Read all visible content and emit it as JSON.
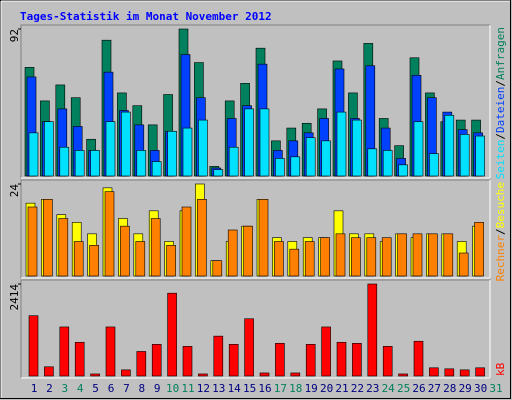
{
  "chart_data": [
    {
      "type": "bar",
      "title": "Tages-Statistik im Monat November 2012",
      "ylim": [
        0,
        92
      ],
      "yticks": [
        92
      ],
      "legend_separator": "/",
      "series": [
        {
          "name": "Anfragen",
          "color": "#00805c",
          "values": [
            68,
            47,
            57,
            49,
            23,
            85,
            52,
            44,
            32,
            51,
            92,
            71,
            6,
            47,
            58,
            80,
            22,
            30,
            33,
            42,
            72,
            52,
            83,
            36,
            19,
            74,
            52,
            34,
            35,
            35,
            null
          ]
        },
        {
          "name": "Dateien",
          "color": "#0040ff",
          "values": [
            62,
            34,
            42,
            31,
            16,
            65,
            41,
            32,
            16,
            28,
            76,
            49,
            5,
            36,
            44,
            70,
            16,
            22,
            27,
            36,
            67,
            36,
            69,
            30,
            11,
            63,
            49,
            40,
            29,
            27,
            null
          ]
        },
        {
          "name": "Seiten",
          "color": "#00e0ff",
          "values": [
            27,
            34,
            18,
            16,
            16,
            34,
            40,
            16,
            9,
            28,
            30,
            35,
            4,
            18,
            42,
            42,
            11,
            12,
            24,
            22,
            40,
            35,
            17,
            16,
            7,
            34,
            14,
            38,
            26,
            25,
            null
          ]
        }
      ]
    },
    {
      "type": "bar",
      "ylim": [
        0,
        24
      ],
      "yticks": [
        24
      ],
      "legend_separator": "/",
      "series": [
        {
          "name": "Besuche",
          "color": "#ffff00",
          "values": [
            19,
            20,
            16,
            14,
            11,
            23,
            15,
            11,
            17,
            9,
            17,
            24,
            4,
            9,
            13,
            20,
            10,
            9,
            10,
            10,
            17,
            11,
            11,
            9,
            11,
            10,
            11,
            11,
            9,
            13,
            null
          ]
        },
        {
          "name": "Rechner",
          "color": "#ff8000",
          "values": [
            18,
            20,
            15,
            9,
            8,
            22,
            13,
            9,
            15,
            8,
            18,
            20,
            4,
            12,
            13,
            20,
            9,
            7,
            9,
            10,
            11,
            10,
            10,
            10,
            11,
            11,
            11,
            11,
            6,
            14,
            null
          ]
        }
      ]
    },
    {
      "type": "bar",
      "ylim": [
        0,
        2414
      ],
      "yticks": [
        2414
      ],
      "categories": [
        "1",
        "2",
        "3",
        "4",
        "5",
        "6",
        "7",
        "8",
        "9",
        "10",
        "11",
        "12",
        "13",
        "14",
        "15",
        "16",
        "17",
        "18",
        "19",
        "20",
        "21",
        "22",
        "23",
        "24",
        "25",
        "26",
        "27",
        "28",
        "29",
        "30",
        "31"
      ],
      "category_colors": [
        "#000080",
        "#000080",
        "#00805c",
        "#00805c",
        "#000080",
        "#000080",
        "#000080",
        "#000080",
        "#000080",
        "#00805c",
        "#00805c",
        "#000080",
        "#000080",
        "#000080",
        "#000080",
        "#000080",
        "#00805c",
        "#00805c",
        "#000080",
        "#000080",
        "#000080",
        "#000080",
        "#000080",
        "#00805c",
        "#00805c",
        "#000080",
        "#000080",
        "#000080",
        "#000080",
        "#000080",
        "#00805c"
      ],
      "series": [
        {
          "name": "kB",
          "color": "#ff0000",
          "values": [
            1582,
            241,
            1287,
            885,
            54,
            1287,
            161,
            644,
            832,
            2173,
            778,
            54,
            1046,
            832,
            1502,
            80,
            858,
            80,
            832,
            1287,
            885,
            858,
            2414,
            778,
            54,
            912,
            215,
            188,
            161,
            215,
            null
          ]
        }
      ]
    }
  ]
}
